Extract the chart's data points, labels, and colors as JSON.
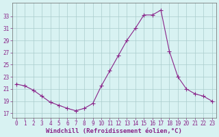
{
  "hours": [
    0,
    1,
    2,
    3,
    4,
    5,
    6,
    7,
    8,
    9,
    10,
    11,
    12,
    13,
    14,
    15,
    16,
    17,
    18,
    19,
    20,
    21,
    22,
    23
  ],
  "values": [
    21.8,
    21.5,
    20.8,
    19.8,
    18.8,
    18.3,
    17.8,
    17.4,
    17.8,
    18.6,
    21.5,
    24.0,
    26.5,
    29.0,
    31.0,
    33.2,
    33.2,
    34.0,
    27.2,
    23.0,
    21.0,
    20.2,
    19.8,
    19.0
  ],
  "line_color": "#882288",
  "marker": "+",
  "marker_size": 4,
  "bg_color": "#d8f2f2",
  "grid_color": "#aacccc",
  "xlabel": "Windchill (Refroidissement éolien,°C)",
  "ylabel_ticks": [
    17,
    19,
    21,
    23,
    25,
    27,
    29,
    31,
    33
  ],
  "ylim": [
    16.2,
    35.2
  ],
  "xlim": [
    -0.5,
    23.5
  ],
  "xticks": [
    0,
    1,
    2,
    3,
    4,
    5,
    6,
    7,
    8,
    9,
    10,
    11,
    12,
    13,
    14,
    15,
    16,
    17,
    18,
    19,
    20,
    21,
    22,
    23
  ],
  "tick_fontsize": 5.5,
  "xlabel_fontsize": 6.5,
  "linewidth": 0.8,
  "marker_lw": 0.8
}
